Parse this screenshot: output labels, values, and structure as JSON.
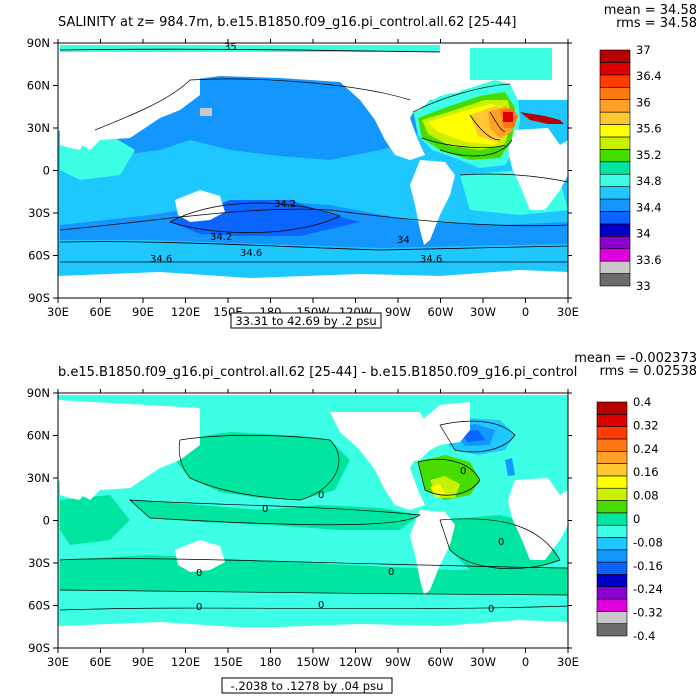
{
  "chart_data": [
    {
      "type": "heatmap",
      "title": "SALINITY at z= 984.7m, b.e15.B1850.f09_g16.pi_control.all.62 [25-44]",
      "stats": {
        "mean": "mean = 34.58",
        "rms": "rms = 34.58"
      },
      "footer": "33.31 to 42.69 by .2 psu",
      "x_ticks": [
        "30E",
        "60E",
        "90E",
        "120E",
        "150E",
        "180",
        "150W",
        "120W",
        "90W",
        "60W",
        "30W",
        "0",
        "30E"
      ],
      "y_ticks": [
        "90N",
        "60N",
        "30N",
        "0",
        "30S",
        "60S",
        "90S"
      ],
      "colorbar": {
        "colors": [
          "#6b6b6b",
          "#c8c8c8",
          "#e000e0",
          "#8c00d0",
          "#0000c8",
          "#0a64ff",
          "#1496ff",
          "#1ec8ff",
          "#3cffe6",
          "#00e6a0",
          "#46dc00",
          "#c8f000",
          "#ffff00",
          "#ffc832",
          "#ffa028",
          "#ff7814",
          "#ff3c00",
          "#dc0000",
          "#b40000"
        ],
        "labels": [
          "33",
          "33.6",
          "34",
          "34.4",
          "34.8",
          "35.2",
          "35.6",
          "36",
          "36.4",
          "37"
        ]
      },
      "contour_labels": [
        "35",
        "34.2",
        "34.2",
        "34.6",
        "34",
        "34.6",
        "34.6"
      ]
    },
    {
      "type": "heatmap",
      "title": "b.e15.B1850.f09_g16.pi_control.all.62 [25-44] - b.e15.B1850.f09_g16.pi_control",
      "stats": {
        "mean": "mean = -0.002373",
        "rms": "rms = 0.02538"
      },
      "footer": "-.2038 to .1278 by .04 psu",
      "x_ticks": [
        "30E",
        "60E",
        "90E",
        "120E",
        "150E",
        "180",
        "150W",
        "120W",
        "90W",
        "60W",
        "30W",
        "0",
        "30E"
      ],
      "y_ticks": [
        "90N",
        "60N",
        "30N",
        "0",
        "30S",
        "60S",
        "90S"
      ],
      "colorbar": {
        "colors": [
          "#6b6b6b",
          "#c8c8c8",
          "#e000e0",
          "#8c00d0",
          "#0000c8",
          "#0a64ff",
          "#1496ff",
          "#1ec8ff",
          "#3cffe6",
          "#00e6a0",
          "#46dc00",
          "#c8f000",
          "#ffff00",
          "#ffc832",
          "#ffa028",
          "#ff7814",
          "#ff3c00",
          "#dc0000",
          "#b40000"
        ],
        "labels": [
          "-0.4",
          "-0.32",
          "-0.24",
          "-0.16",
          "-0.08",
          "0",
          "0.08",
          "0.16",
          "0.24",
          "0.32",
          "0.4"
        ]
      },
      "contour_labels": [
        "0",
        "0",
        "0",
        "0",
        "0",
        "0",
        "0",
        "0",
        "0"
      ]
    }
  ]
}
